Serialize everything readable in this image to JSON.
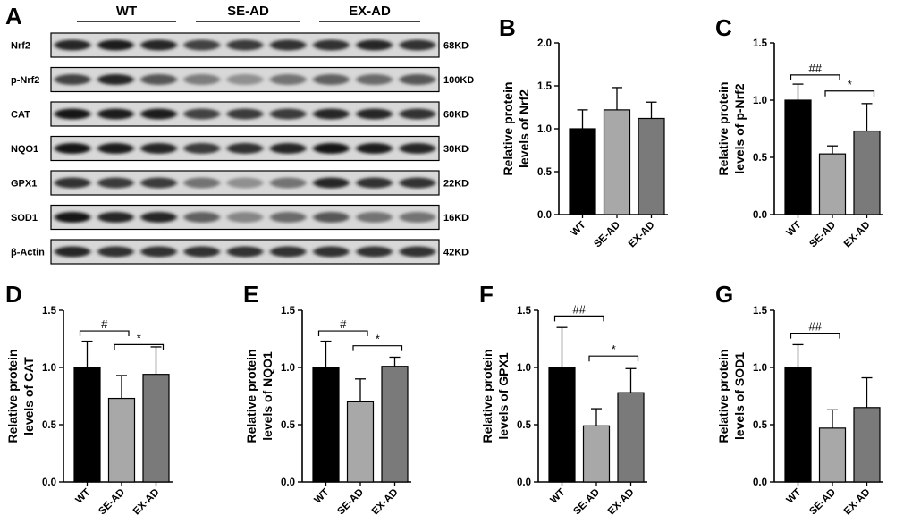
{
  "panel_letters": [
    "A",
    "B",
    "C",
    "D",
    "E",
    "F",
    "G"
  ],
  "blot": {
    "groups": [
      "WT",
      "SE-AD",
      "EX-AD"
    ],
    "rows": [
      {
        "protein": "Nrf2",
        "size": "68KD",
        "intensity": [
          0.85,
          0.9,
          0.85,
          0.7,
          0.75,
          0.8,
          0.8,
          0.85,
          0.8
        ]
      },
      {
        "protein": "p-Nrf2",
        "size": "100KD",
        "intensity": [
          0.7,
          0.85,
          0.6,
          0.4,
          0.3,
          0.45,
          0.55,
          0.5,
          0.6
        ]
      },
      {
        "protein": "CAT",
        "size": "60KD",
        "intensity": [
          0.95,
          0.9,
          0.9,
          0.7,
          0.75,
          0.75,
          0.85,
          0.85,
          0.8
        ]
      },
      {
        "protein": "NQO1",
        "size": "30KD",
        "intensity": [
          0.95,
          0.9,
          0.85,
          0.75,
          0.8,
          0.85,
          0.95,
          0.9,
          0.85
        ]
      },
      {
        "protein": "GPX1",
        "size": "22KD",
        "intensity": [
          0.8,
          0.75,
          0.75,
          0.45,
          0.3,
          0.45,
          0.85,
          0.8,
          0.8
        ]
      },
      {
        "protein": "SOD1",
        "size": "16KD",
        "intensity": [
          0.95,
          0.85,
          0.85,
          0.55,
          0.35,
          0.5,
          0.6,
          0.45,
          0.45
        ]
      },
      {
        "protein": "β-Actin",
        "size": "42KD",
        "intensity": [
          0.85,
          0.8,
          0.8,
          0.8,
          0.8,
          0.8,
          0.8,
          0.8,
          0.8
        ]
      }
    ]
  },
  "chart_data": [
    {
      "panel": "B",
      "type": "bar",
      "categories": [
        "WT",
        "SE-AD",
        "EX-AD"
      ],
      "values": [
        1.0,
        1.22,
        1.12
      ],
      "errors": [
        0.22,
        0.26,
        0.19
      ],
      "ylabel": [
        "Relative protein",
        "levels of Nrf2"
      ],
      "ylim": [
        0,
        2.0
      ],
      "yticks": [
        "0.0",
        "0.5",
        "1.0",
        "1.5",
        "2.0"
      ],
      "significance": [],
      "colors": [
        "#000000",
        "#a8a8a8",
        "#7a7a7a"
      ]
    },
    {
      "panel": "C",
      "type": "bar",
      "categories": [
        "WT",
        "SE-AD",
        "EX-AD"
      ],
      "values": [
        1.0,
        0.53,
        0.73
      ],
      "errors": [
        0.14,
        0.07,
        0.24
      ],
      "ylabel": [
        "Relative protein",
        "levels of p-Nrf2"
      ],
      "ylim": [
        0,
        1.5
      ],
      "yticks": [
        "0.0",
        "0.5",
        "1.0",
        "1.5"
      ],
      "significance": [
        {
          "from": 0,
          "to": 1,
          "label": "##",
          "y": 1.22
        },
        {
          "from": 1,
          "to": 2,
          "label": "*",
          "y": 1.08
        }
      ],
      "colors": [
        "#000000",
        "#a8a8a8",
        "#7a7a7a"
      ]
    },
    {
      "panel": "D",
      "type": "bar",
      "categories": [
        "WT",
        "SE-AD",
        "EX-AD"
      ],
      "values": [
        1.0,
        0.73,
        0.94
      ],
      "errors": [
        0.23,
        0.2,
        0.24
      ],
      "ylabel": [
        "Relative protein",
        "levels of CAT"
      ],
      "ylim": [
        0,
        1.5
      ],
      "yticks": [
        "0.0",
        "0.5",
        "1.0",
        "1.5"
      ],
      "significance": [
        {
          "from": 0,
          "to": 1,
          "label": "#",
          "y": 1.32
        },
        {
          "from": 1,
          "to": 2,
          "label": "*",
          "y": 1.2
        }
      ],
      "colors": [
        "#000000",
        "#a8a8a8",
        "#7a7a7a"
      ]
    },
    {
      "panel": "E",
      "type": "bar",
      "categories": [
        "WT",
        "SE-AD",
        "EX-AD"
      ],
      "values": [
        1.0,
        0.7,
        1.01
      ],
      "errors": [
        0.23,
        0.2,
        0.08
      ],
      "ylabel": [
        "Relative protein",
        "levels of NQO1"
      ],
      "ylim": [
        0,
        1.5
      ],
      "yticks": [
        "0.0",
        "0.5",
        "1.0",
        "1.5"
      ],
      "significance": [
        {
          "from": 0,
          "to": 1,
          "label": "#",
          "y": 1.32
        },
        {
          "from": 1,
          "to": 2,
          "label": "*",
          "y": 1.19
        }
      ],
      "colors": [
        "#000000",
        "#a8a8a8",
        "#7a7a7a"
      ]
    },
    {
      "panel": "F",
      "type": "bar",
      "categories": [
        "WT",
        "SE-AD",
        "EX-AD"
      ],
      "values": [
        1.0,
        0.49,
        0.78
      ],
      "errors": [
        0.35,
        0.15,
        0.21
      ],
      "ylabel": [
        "Relative protein",
        "levels of GPX1"
      ],
      "ylim": [
        0,
        1.5
      ],
      "yticks": [
        "0.0",
        "0.5",
        "1.0",
        "1.5"
      ],
      "significance": [
        {
          "from": 0,
          "to": 1,
          "label": "##",
          "y": 1.45
        },
        {
          "from": 1,
          "to": 2,
          "label": "*",
          "y": 1.1
        }
      ],
      "colors": [
        "#000000",
        "#a8a8a8",
        "#7a7a7a"
      ]
    },
    {
      "panel": "G",
      "type": "bar",
      "categories": [
        "WT",
        "SE-AD",
        "EX-AD"
      ],
      "values": [
        1.0,
        0.47,
        0.65
      ],
      "errors": [
        0.2,
        0.16,
        0.26
      ],
      "ylabel": [
        "Relative protein",
        "levels of SOD1"
      ],
      "ylim": [
        0,
        1.5
      ],
      "yticks": [
        "0.0",
        "0.5",
        "1.0",
        "1.5"
      ],
      "significance": [
        {
          "from": 0,
          "to": 1,
          "label": "##",
          "y": 1.3
        }
      ],
      "colors": [
        "#000000",
        "#a8a8a8",
        "#7a7a7a"
      ]
    }
  ]
}
